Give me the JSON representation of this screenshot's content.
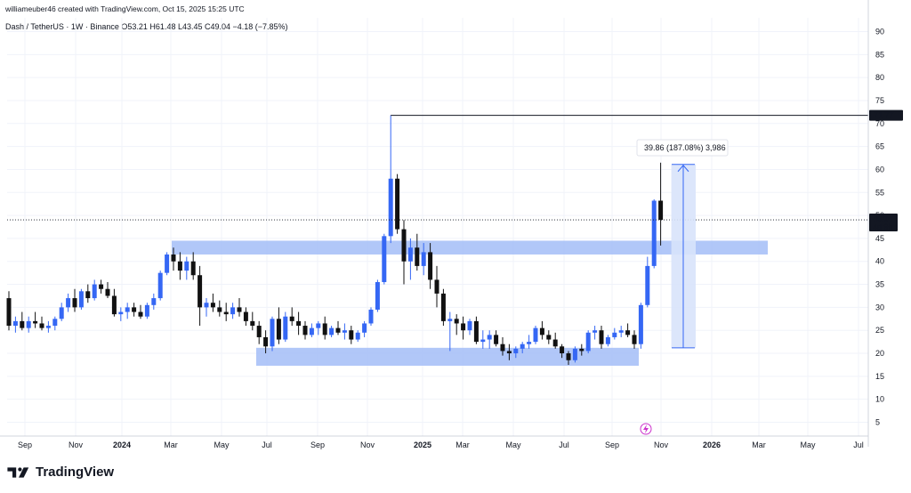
{
  "header": {
    "creator": "williameuber46 created with TradingView.com, Oct 15, 2025 15:25 UTC",
    "symbol": "Dash / TetherUS · 1W · Binance",
    "ohlc": "O53.21 H61.48 L43.45 C49.04 −4.18 (−7.85%)"
  },
  "logo": {
    "text": "TradingView"
  },
  "colors": {
    "up": "#3567f4",
    "down": "#111111",
    "zone": "#a3bdf7",
    "measure": "#d8e3fb",
    "grid": "#f0f3fa"
  },
  "chart_data": {
    "type": "candlestick",
    "ylim": [
      2,
      93
    ],
    "y_ticks": [
      5,
      10,
      15,
      20,
      25,
      30,
      35,
      40,
      45,
      50,
      55,
      60,
      65,
      70,
      75,
      80,
      85,
      90
    ],
    "x_ticks": [
      "Sep",
      "Nov",
      "2024",
      "Mar",
      "May",
      "Jul",
      "Sep",
      "Nov",
      "2025",
      "Mar",
      "May",
      "Jul",
      "Sep",
      "Nov",
      "2026",
      "Mar",
      "May",
      "Jul"
    ],
    "last_price": "49.04",
    "countdown": "4d 9h",
    "high_line_label": "71.77",
    "measure_label": "39.86 (187.08%) 3,986",
    "zones": [
      {
        "from_date": "2024-02",
        "to_date": "2026-01",
        "low": 41.5,
        "high": 44.5
      },
      {
        "from_date": "2024-06",
        "to_date": "2025-09",
        "low": 17.3,
        "high": 21.2
      }
    ],
    "measure": {
      "from": 21.2,
      "to": 61.1,
      "date": "2025-11"
    },
    "candles": [
      [
        32,
        33.5,
        25,
        26
      ],
      [
        26,
        28,
        24.5,
        27
      ],
      [
        27,
        29,
        25,
        25.5
      ],
      [
        25.5,
        28,
        24.5,
        27
      ],
      [
        27,
        29,
        25.5,
        26.5
      ],
      [
        26.5,
        28,
        25,
        25.5
      ],
      [
        25.5,
        27,
        24.5,
        26
      ],
      [
        26,
        28,
        25,
        27.5
      ],
      [
        27.5,
        31,
        27,
        30
      ],
      [
        30,
        33,
        29,
        32
      ],
      [
        32,
        34,
        29,
        30
      ],
      [
        30,
        34,
        29.5,
        33.5
      ],
      [
        33.5,
        35,
        31,
        32
      ],
      [
        32,
        36,
        31.5,
        35
      ],
      [
        35,
        36,
        33,
        34
      ],
      [
        34,
        35.5,
        32,
        32.5
      ],
      [
        32.5,
        34,
        28,
        28.5
      ],
      [
        28.5,
        30,
        27,
        29
      ],
      [
        29,
        31,
        27.5,
        30
      ],
      [
        30,
        31,
        28,
        29
      ],
      [
        29,
        30.5,
        27.5,
        28
      ],
      [
        28,
        31,
        27.5,
        30.5
      ],
      [
        30.5,
        33,
        29.5,
        32
      ],
      [
        32,
        38,
        31.5,
        37.5
      ],
      [
        37.5,
        42,
        37,
        41.5
      ],
      [
        41.5,
        43,
        38,
        40
      ],
      [
        40,
        42,
        36,
        38
      ],
      [
        38,
        41,
        36,
        40
      ],
      [
        40,
        42,
        36,
        37
      ],
      [
        37,
        39,
        26,
        30
      ],
      [
        30,
        32,
        28,
        31
      ],
      [
        31,
        33,
        29,
        30
      ],
      [
        30,
        31.5,
        28,
        29
      ],
      [
        29,
        31,
        27,
        28.5
      ],
      [
        28.5,
        31,
        27.5,
        30
      ],
      [
        30,
        32,
        28,
        29
      ],
      [
        29,
        30,
        26,
        27
      ],
      [
        27,
        29,
        25,
        26
      ],
      [
        26,
        27,
        22,
        23.5
      ],
      [
        23.5,
        25,
        20,
        21.5
      ],
      [
        21.5,
        28,
        20.5,
        27.5
      ],
      [
        27.5,
        30,
        22,
        23
      ],
      [
        23,
        29,
        22.5,
        28
      ],
      [
        28,
        30,
        26,
        27
      ],
      [
        27,
        29,
        24,
        26
      ],
      [
        26,
        27,
        23,
        24
      ],
      [
        24,
        26.5,
        23.5,
        25.5
      ],
      [
        25.5,
        27,
        24,
        26.5
      ],
      [
        26.5,
        28,
        23,
        24
      ],
      [
        24,
        26,
        23.5,
        25.5
      ],
      [
        25.5,
        27,
        24,
        24.5
      ],
      [
        24.5,
        26.5,
        23,
        25
      ],
      [
        25,
        26,
        22,
        23
      ],
      [
        23,
        25,
        22.5,
        24.5
      ],
      [
        24.5,
        27,
        23.5,
        26.5
      ],
      [
        26.5,
        30,
        26,
        29.5
      ],
      [
        29.5,
        36,
        29,
        35.5
      ],
      [
        35.5,
        46,
        35,
        45.5
      ],
      [
        45.5,
        71.8,
        44,
        58
      ],
      [
        58,
        59,
        46,
        47
      ],
      [
        47,
        49,
        35,
        40
      ],
      [
        40,
        45,
        36,
        43
      ],
      [
        43,
        46,
        38,
        39
      ],
      [
        39,
        44,
        37,
        42
      ],
      [
        42,
        44,
        34,
        36
      ],
      [
        36,
        39,
        30,
        33
      ],
      [
        33,
        34,
        26,
        27
      ],
      [
        27,
        29,
        20.5,
        27.5
      ],
      [
        27.5,
        28.5,
        24,
        26.5
      ],
      [
        26.5,
        28,
        23,
        25
      ],
      [
        25,
        27.5,
        24,
        27
      ],
      [
        27,
        28,
        22,
        22.5
      ],
      [
        22.5,
        25,
        21,
        23
      ],
      [
        23,
        25,
        21,
        24
      ],
      [
        24,
        25,
        21.5,
        22
      ],
      [
        22,
        23.5,
        19.5,
        20.5
      ],
      [
        20.5,
        22,
        18.5,
        20
      ],
      [
        20,
        21.5,
        19,
        21
      ],
      [
        21,
        22.5,
        20,
        22
      ],
      [
        22,
        24,
        21,
        22.5
      ],
      [
        22.5,
        26,
        22,
        25.5
      ],
      [
        25.5,
        27,
        23,
        24
      ],
      [
        24,
        25,
        22,
        23
      ],
      [
        23,
        24.5,
        21,
        21.5
      ],
      [
        21.5,
        22,
        19,
        20
      ],
      [
        20,
        20.5,
        17.5,
        18.5
      ],
      [
        18.5,
        21.5,
        18,
        21
      ],
      [
        21,
        22,
        19.5,
        20.5
      ],
      [
        20.5,
        25,
        20,
        24.5
      ],
      [
        24.5,
        26,
        23,
        25
      ],
      [
        25,
        26,
        21,
        22
      ],
      [
        22,
        24,
        21.5,
        23.5
      ],
      [
        23.5,
        25.5,
        23,
        24.5
      ],
      [
        24.5,
        26,
        23.5,
        25
      ],
      [
        25,
        26.5,
        23.5,
        24
      ],
      [
        24,
        25,
        21,
        22
      ],
      [
        22,
        31,
        21,
        30.5
      ],
      [
        30.5,
        41,
        30,
        39
      ],
      [
        39,
        53.5,
        38.5,
        53.21
      ],
      [
        53.21,
        61.48,
        43.45,
        49.04
      ]
    ]
  }
}
